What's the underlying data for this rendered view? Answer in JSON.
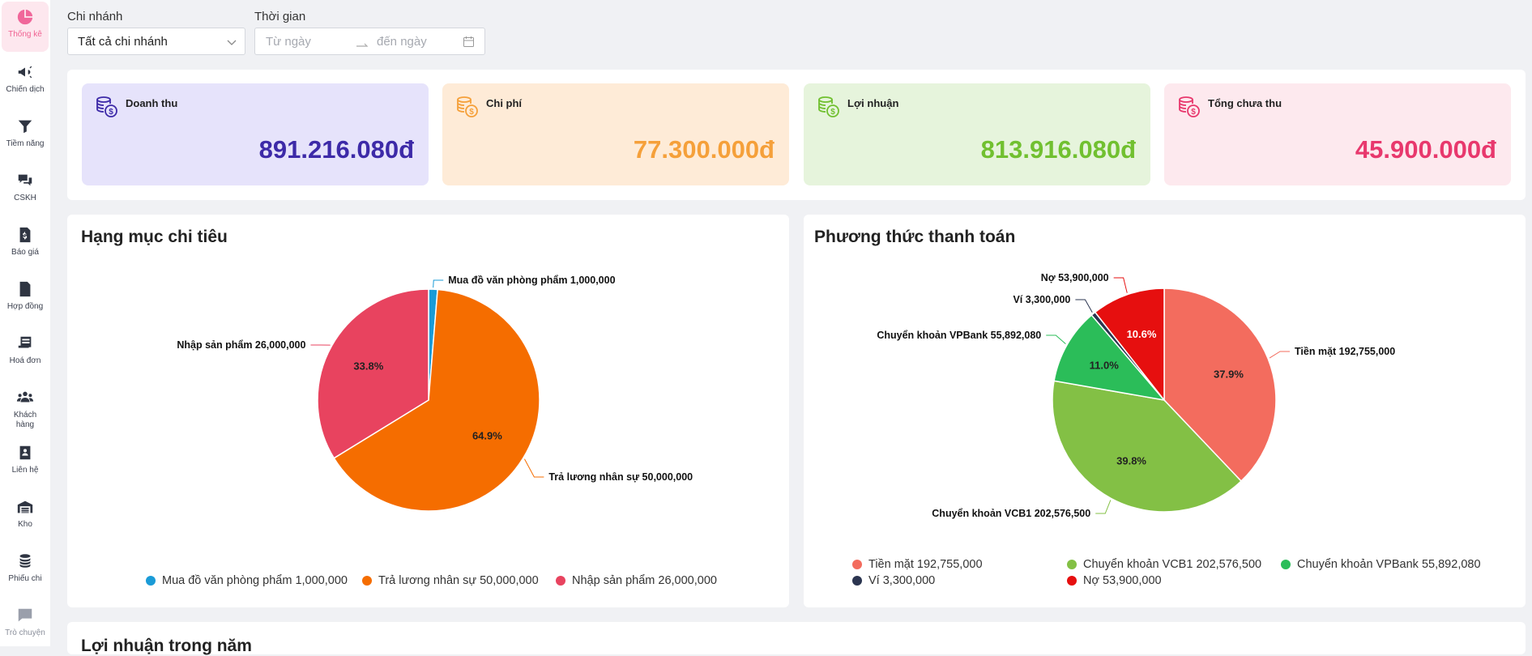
{
  "sidebar": {
    "items": [
      {
        "label": "Thống kê",
        "icon": "pie-chart-icon"
      },
      {
        "label": "Chiến dịch",
        "icon": "megaphone-icon"
      },
      {
        "label": "Tiềm năng",
        "icon": "funnel-icon"
      },
      {
        "label": "CSKH",
        "icon": "chat-bubbles-icon"
      },
      {
        "label": "Báo giá",
        "icon": "dollar-document-icon"
      },
      {
        "label": "Hợp đồng",
        "icon": "contract-document-icon"
      },
      {
        "label": "Hoá đơn",
        "icon": "invoice-icon"
      },
      {
        "label": "Khách",
        "label2": "hàng",
        "icon": "users-icon"
      },
      {
        "label": "Liên hệ",
        "icon": "contact-book-icon"
      },
      {
        "label": "Kho",
        "icon": "warehouse-icon"
      },
      {
        "label": "Phiếu chi",
        "icon": "coins-icon"
      },
      {
        "label": "Trò chuyện",
        "icon": "message-icon"
      }
    ]
  },
  "filters": {
    "branch_label": "Chi nhánh",
    "branch_value": "Tất cả chi nhánh",
    "time_label": "Thời gian",
    "from_placeholder": "Từ ngày",
    "to_placeholder": "đến ngày"
  },
  "cards": [
    {
      "title": "Doanh thu",
      "value": "891.216.080đ",
      "color": "#3d2aa8",
      "bg": "#e6e3fb",
      "icon": "money-coins-icon"
    },
    {
      "title": "Chi phí",
      "value": "77.300.000đ",
      "color": "#f5a03a",
      "bg": "#feebd7",
      "icon": "money-coins-icon"
    },
    {
      "title": "Lợi nhuận",
      "value": "813.916.080đ",
      "color": "#71c030",
      "bg": "#e6f4dc",
      "icon": "money-coins-icon"
    },
    {
      "title": "Tổng chưa thu",
      "value": "45.900.000đ",
      "color": "#e8386d",
      "bg": "#fde9ee",
      "icon": "money-coins-icon"
    }
  ],
  "chart_data": [
    {
      "type": "pie",
      "title": "Hạng mục chi tiêu",
      "categories": [
        "Mua đồ văn phòng phẩm 1,000,000",
        "Trả lương nhân sự 50,000,000",
        "Nhập sản phẩm 26,000,000"
      ],
      "values": [
        1000000,
        50000000,
        26000000
      ],
      "percent_labels": [
        "",
        "64.9%",
        "33.8%"
      ],
      "colors": [
        "#1a9bd7",
        "#f56d00",
        "#e8435f"
      ],
      "legend": "bottom"
    },
    {
      "type": "pie",
      "title": "Phương thức thanh toán",
      "categories": [
        "Tiền mặt 192,755,000",
        "Chuyển khoản VCB1 202,576,500",
        "Chuyển khoản VPBank 55,892,080",
        "Ví 3,300,000",
        "Nợ 53,900,000"
      ],
      "values": [
        192755000,
        202576500,
        55892080,
        3300000,
        53900000
      ],
      "percent_labels": [
        "37.9%",
        "39.8%",
        "11.0%",
        "",
        "10.6%"
      ],
      "colors": [
        "#f36c5e",
        "#83c045",
        "#2bbd59",
        "#2b3550",
        "#e60f0f"
      ],
      "legend": "bottom"
    }
  ],
  "bottom_section": {
    "title": "Lợi nhuận trong năm"
  }
}
